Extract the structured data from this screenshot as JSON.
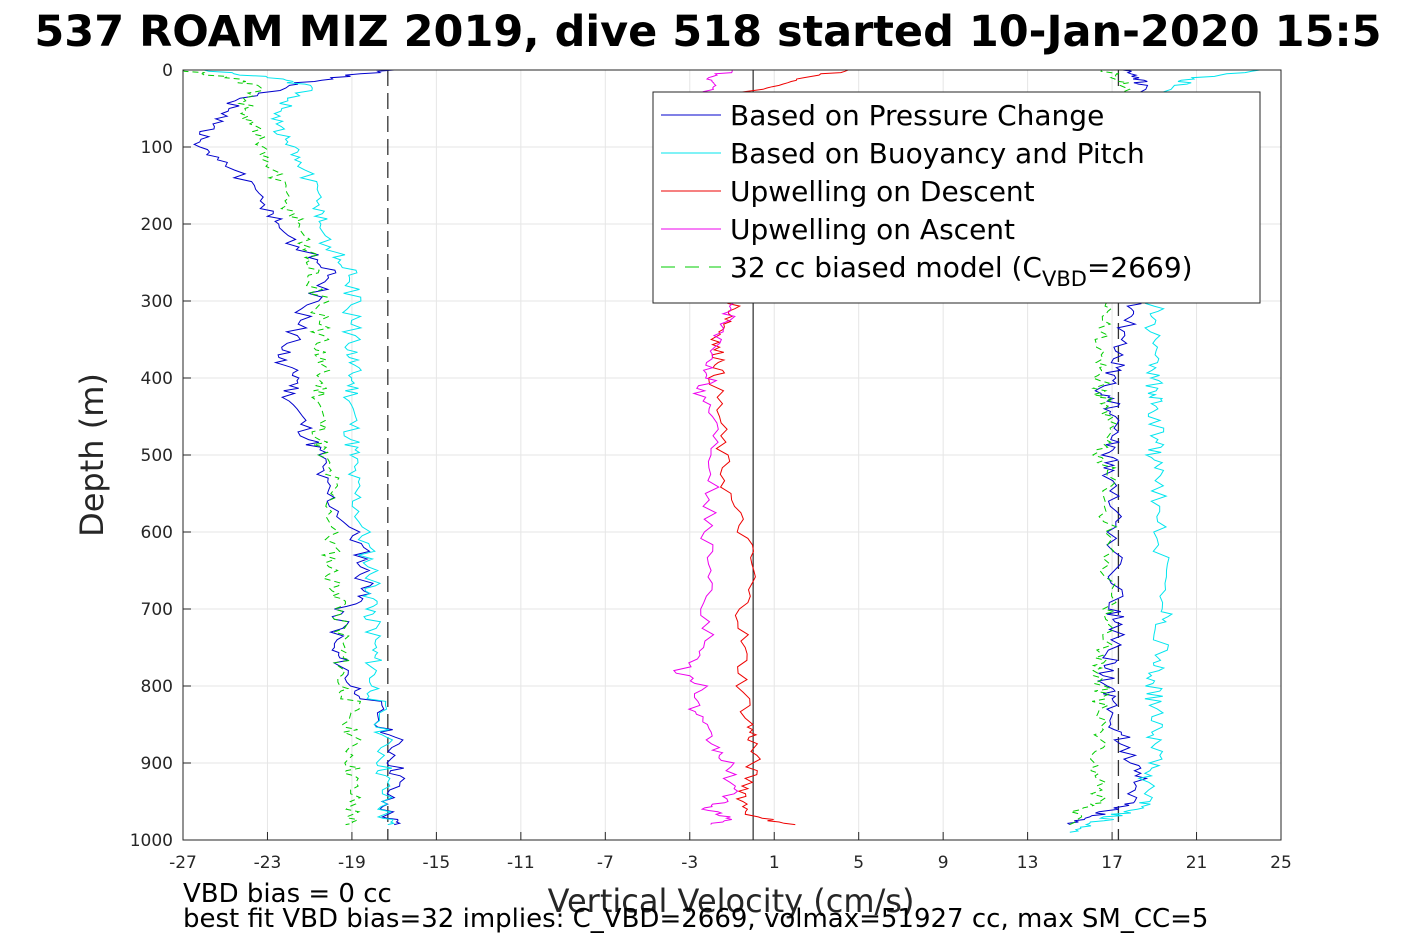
{
  "chart_data": {
    "type": "line",
    "title": "537 ROAM MIZ 2019, dive 518 started 10-Jan-2020 15:5",
    "xlabel": "Vertical Velocity (cm/s)",
    "ylabel": "Depth (m)",
    "xlim": [
      -27,
      25
    ],
    "ylim": [
      0,
      1000
    ],
    "y_reversed": true,
    "grid": true,
    "xticks": [
      "-27",
      "-23",
      "-19",
      "-15",
      "-11",
      "-7",
      "-3",
      "1",
      "5",
      "9",
      "13",
      "17",
      "21",
      "25"
    ],
    "yticks": [
      "0",
      "100",
      "200",
      "300",
      "400",
      "500",
      "600",
      "700",
      "800",
      "900",
      "1000"
    ],
    "legend_position": "top-right",
    "legend": [
      {
        "label": "Based on Pressure Change",
        "color": "#0000cc",
        "style": "solid"
      },
      {
        "label": "Based on Buoyancy and Pitch",
        "color": "#00e5ee",
        "style": "solid"
      },
      {
        "label": "Upwelling on Descent",
        "color": "#ee0000",
        "style": "solid"
      },
      {
        "label": "Upwelling on Ascent",
        "color": "#ee00ee",
        "style": "solid"
      },
      {
        "label": "32 cc biased model (C",
        "label_sub": "VBD",
        "label_end": "=2669)",
        "color": "#00cc00",
        "style": "dashed"
      }
    ],
    "reference_lines": [
      {
        "x": -17.3,
        "style": "dashed",
        "color": "#333333"
      },
      {
        "x": 17.3,
        "style": "dashed",
        "color": "#333333"
      },
      {
        "x": 0,
        "style": "solid",
        "color": "#000000"
      }
    ],
    "series": [
      {
        "name": "Based on Pressure Change",
        "color": "#0000cc",
        "descent": {
          "depth": [
            0,
            10,
            20,
            40,
            60,
            80,
            100,
            120,
            150,
            180,
            200,
            230,
            250,
            270,
            300,
            330,
            360,
            380,
            400,
            420,
            450,
            480,
            500,
            530,
            560,
            600,
            630,
            660,
            680,
            700,
            720,
            750,
            770,
            800,
            820,
            850,
            870,
            900,
            920,
            950,
            970,
            980
          ],
          "velocity": [
            -17,
            -20,
            -22,
            -24.5,
            -25,
            -26,
            -26.5,
            -25,
            -24,
            -23,
            -22.5,
            -21.5,
            -20.5,
            -20,
            -21,
            -21.5,
            -22,
            -22.5,
            -21.5,
            -22,
            -21.5,
            -21,
            -20.5,
            -20.5,
            -20,
            -19,
            -18.5,
            -18.5,
            -18,
            -19.5,
            -19.5,
            -20,
            -19.5,
            -19,
            -18,
            -17.5,
            -17,
            -17,
            -16.8,
            -17.5,
            -17.3,
            -17
          ]
        },
        "ascent": {
          "depth": [
            980,
            970,
            960,
            950,
            920,
            900,
            870,
            850,
            820,
            800,
            780,
            760,
            720,
            700,
            650,
            600,
            560,
            520,
            500,
            480,
            450,
            430,
            420,
            400,
            380,
            350,
            320,
            300,
            250,
            200,
            150,
            100,
            50,
            20,
            10,
            0
          ],
          "velocity": [
            15,
            16,
            17,
            18,
            18.2,
            18,
            17.5,
            17,
            16.8,
            16.8,
            16.8,
            17,
            17.2,
            17.2,
            17.2,
            17.2,
            17,
            17,
            16.8,
            17,
            17,
            17,
            16.5,
            17,
            17.2,
            17.5,
            17.8,
            18,
            18,
            18,
            18,
            18,
            18,
            18.5,
            18,
            17.5
          ]
        }
      },
      {
        "name": "Based on Buoyancy and Pitch",
        "color": "#00e5ee",
        "descent": {
          "depth": [
            0,
            10,
            20,
            40,
            60,
            80,
            100,
            120,
            150,
            180,
            200,
            230,
            250,
            270,
            300,
            330,
            360,
            380,
            400,
            420,
            450,
            480,
            500,
            530,
            560,
            600,
            630,
            660,
            680,
            700,
            720,
            750,
            770,
            800,
            820,
            850,
            870,
            900,
            920,
            950,
            970,
            980
          ],
          "velocity": [
            -26,
            -23,
            -21,
            -22,
            -22.5,
            -22.5,
            -22,
            -21.5,
            -21,
            -20.5,
            -20.5,
            -20,
            -19.5,
            -19,
            -19,
            -19,
            -19,
            -19,
            -19,
            -19,
            -19,
            -19,
            -19,
            -19,
            -18.8,
            -18.5,
            -18.3,
            -18,
            -18,
            -18,
            -18,
            -18,
            -18,
            -18,
            -17.8,
            -17.5,
            -17.5,
            -17.5,
            -17.5,
            -17.5,
            -17.5,
            -17.3
          ]
        },
        "ascent": {
          "depth": [
            990,
            980,
            970,
            960,
            950,
            920,
            900,
            870,
            850,
            820,
            800,
            780,
            760,
            720,
            700,
            650,
            600,
            560,
            520,
            500,
            480,
            450,
            430,
            420,
            400,
            380,
            350,
            320,
            300,
            250,
            200,
            150,
            100,
            50,
            20,
            10,
            0
          ],
          "velocity": [
            15,
            16,
            17,
            18,
            18.7,
            18.7,
            18.9,
            19,
            19,
            19,
            19,
            19,
            19.2,
            19.4,
            19.4,
            19.4,
            19.3,
            19.2,
            19,
            19,
            19,
            19,
            19,
            19,
            19,
            19,
            19,
            19,
            19,
            19,
            19,
            19,
            19,
            19,
            20,
            21,
            24
          ]
        }
      },
      {
        "name": "Upwelling on Descent",
        "color": "#ee0000",
        "segments": [
          {
            "depth": [
              0,
              10,
              20,
              30,
              40
            ],
            "velocity": [
              4.5,
              2.5,
              1.5,
              -0.5,
              -1
            ]
          },
          {
            "depth": [
              300,
              320,
              340,
              360,
              380,
              400,
              450,
              500,
              550,
              600,
              650,
              700,
              750,
              800,
              850,
              870,
              900,
              930,
              950,
              970,
              980
            ],
            "velocity": [
              -0.8,
              -1,
              -1.5,
              -1.8,
              -1.5,
              -1.8,
              -1.6,
              -1.5,
              -1.2,
              -0.5,
              0,
              -0.5,
              -0.5,
              -0.5,
              -0.2,
              0,
              0,
              -0.3,
              -0.5,
              0,
              2
            ]
          }
        ]
      },
      {
        "name": "Upwelling on Ascent",
        "color": "#ee00ee",
        "segments": [
          {
            "depth": [
              0,
              10,
              20,
              30,
              40
            ],
            "velocity": [
              -1,
              -2,
              -1.5,
              -2.2,
              -1.8
            ]
          },
          {
            "depth": [
              300,
              320,
              350,
              380,
              400,
              420,
              450,
              500,
              550,
              600,
              650,
              700,
              750,
              780,
              800,
              830,
              850,
              880,
              900,
              930,
              950,
              960,
              970,
              980
            ],
            "velocity": [
              -1,
              -1.2,
              -1.8,
              -2,
              -2,
              -2.5,
              -1.8,
              -1.8,
              -2,
              -2.2,
              -1.8,
              -2.2,
              -2.2,
              -3.5,
              -2.5,
              -2.8,
              -2.5,
              -1.8,
              -1.2,
              -1,
              -1.2,
              -2.5,
              -1,
              -2
            ]
          }
        ]
      },
      {
        "name": "32 cc biased model",
        "color": "#00cc00",
        "dashed": true,
        "descent": {
          "depth": [
            0,
            10,
            20,
            40,
            60,
            80,
            100,
            120,
            150,
            180,
            200,
            230,
            250,
            270,
            300,
            330,
            360,
            380,
            400,
            420,
            450,
            480,
            500,
            530,
            560,
            600,
            630,
            660,
            680,
            700,
            720,
            750,
            770,
            800,
            820,
            850,
            870,
            900,
            920,
            950,
            970,
            980
          ],
          "velocity": [
            -27,
            -25,
            -23.5,
            -24,
            -24,
            -23.5,
            -23.5,
            -23,
            -22.5,
            -22,
            -21.5,
            -21,
            -21,
            -21,
            -20.5,
            -20.5,
            -20.5,
            -20.5,
            -20.5,
            -20.5,
            -20.5,
            -20.5,
            -20.5,
            -20,
            -20,
            -20,
            -20,
            -20,
            -19.5,
            -19.5,
            -19.5,
            -19.5,
            -19.5,
            -19.5,
            -19,
            -19,
            -19,
            -19,
            -19,
            -19,
            -19,
            -19.3
          ]
        },
        "ascent": {
          "depth": [
            980,
            960,
            950,
            920,
            900,
            870,
            850,
            820,
            800,
            780,
            760,
            720,
            700,
            650,
            600,
            560,
            520,
            500,
            480,
            450,
            430,
            420,
            400,
            380,
            350,
            320,
            300,
            250,
            200,
            150,
            100,
            50,
            20,
            10,
            0
          ],
          "velocity": [
            15,
            15.5,
            16.3,
            16.3,
            16.3,
            16.3,
            16.3,
            16.5,
            16.5,
            16.5,
            16.5,
            16.8,
            16.8,
            16.8,
            16.8,
            16.8,
            16.8,
            16.5,
            16.8,
            16.8,
            16.8,
            16.5,
            16.5,
            16.5,
            16.5,
            16.8,
            17,
            17,
            17,
            17,
            17,
            17,
            17.5,
            17.2,
            16.5
          ]
        }
      }
    ]
  },
  "footer": {
    "line1": "VBD bias = 0 cc",
    "line2": "best fit VBD bias=32 implies: C_VBD=2669, volmax=51927 cc, max SM_CC=5"
  }
}
